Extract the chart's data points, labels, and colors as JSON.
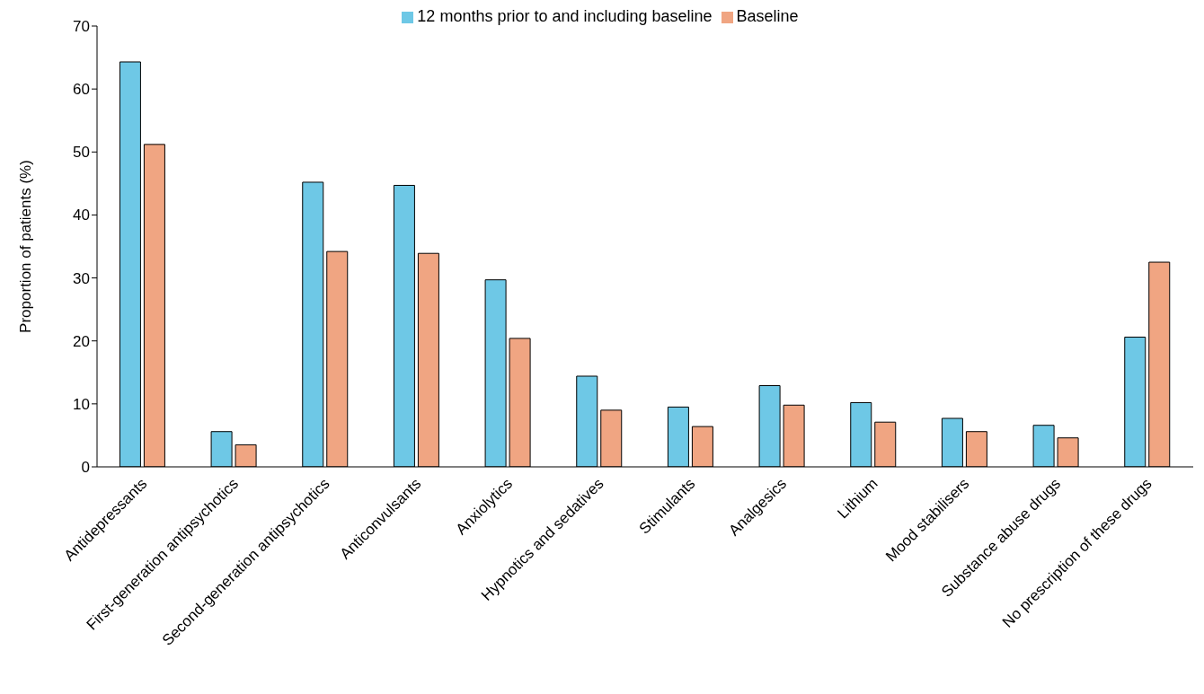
{
  "chart_data": {
    "type": "bar",
    "ylabel": "Proportion of patients (%)",
    "categories": [
      "Antidepressants",
      "First-generation antipsychotics",
      "Second-generation antipsychotics",
      "Anticonvulsants",
      "Anxiolytics",
      "Hypnotics and sedatives",
      "Stimulants",
      "Analgesics",
      "Lithium",
      "Mood stabilisers",
      "Substance abuse drugs",
      "No prescription of these drugs"
    ],
    "series": [
      {
        "name": "12 months prior to and including baseline",
        "color": "#6ec8e6",
        "values": [
          64.3,
          5.6,
          45.2,
          44.7,
          29.7,
          14.4,
          9.5,
          12.9,
          10.2,
          7.7,
          6.6,
          20.6
        ]
      },
      {
        "name": "Baseline",
        "color": "#f0a582",
        "values": [
          51.2,
          3.5,
          34.2,
          33.9,
          20.4,
          9.0,
          6.4,
          9.8,
          7.1,
          5.6,
          4.6,
          32.5
        ]
      }
    ],
    "ylim": [
      0,
      70
    ],
    "yticks": [
      0,
      10,
      20,
      30,
      40,
      50,
      60,
      70
    ],
    "grid": false,
    "legend": "top"
  }
}
